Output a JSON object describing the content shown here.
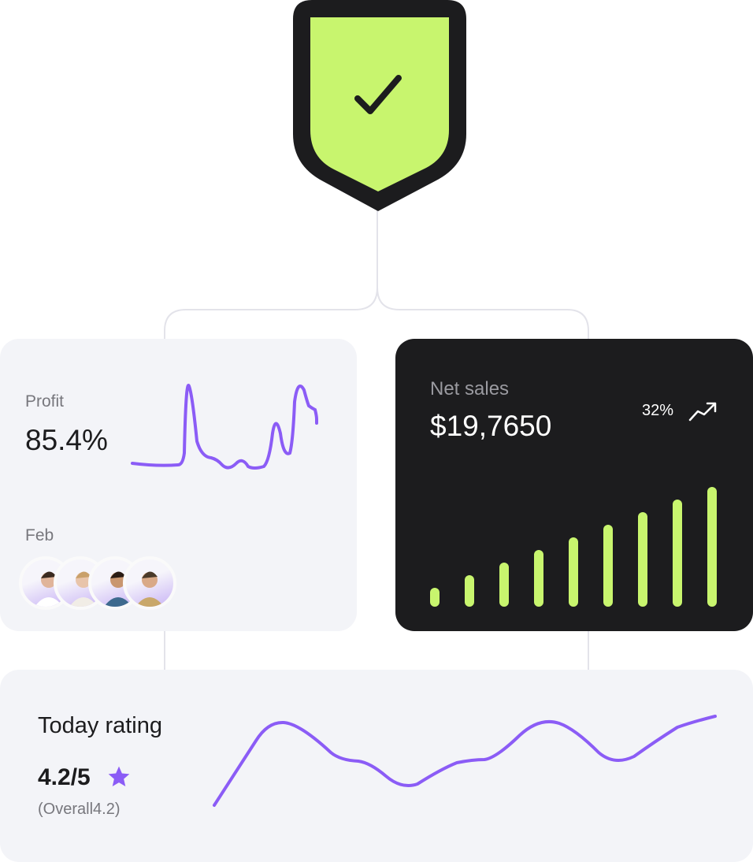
{
  "profit": {
    "label": "Profit",
    "value": "85.4%",
    "month": "Feb",
    "avatars": [
      "avatar-1",
      "avatar-2",
      "avatar-3",
      "avatar-4"
    ]
  },
  "net_sales": {
    "label": "Net sales",
    "value": "$19,7650",
    "change": "32%",
    "trend_icon": "trending-up-icon",
    "bars": [
      3,
      5,
      7,
      9,
      11,
      13,
      15,
      17,
      19
    ]
  },
  "rating": {
    "title": "Today rating",
    "value": "4.2/5",
    "star_icon": "star-icon",
    "overall": "(Overall4.2)"
  },
  "colors": {
    "accent_purple": "#8b5cf6",
    "accent_lime": "#c8f56e",
    "dark": "#1c1c1e",
    "card_light": "#f3f4f8"
  }
}
